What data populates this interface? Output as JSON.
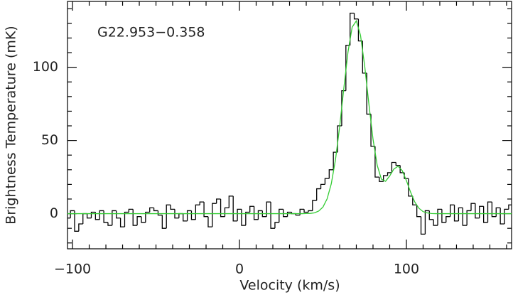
{
  "chart_data": {
    "type": "spectrum",
    "annotation": "G22.953−0.358",
    "xlabel": "Velocity (km/s)",
    "ylabel": "Brightness Temperature (mK)",
    "xlim": [
      -103,
      163
    ],
    "ylim": [
      -24,
      145
    ],
    "xticks": [
      {
        "value": -100,
        "label": "−100"
      },
      0,
      100
    ],
    "yticks": [
      0,
      50,
      100
    ],
    "xminorticks": [
      -90,
      -80,
      -70,
      -60,
      -50,
      -40,
      -30,
      -20,
      -10,
      10,
      20,
      30,
      40,
      50,
      60,
      70,
      80,
      90,
      110,
      120,
      130,
      140,
      150,
      160
    ],
    "yminorticks": [
      -20,
      -10,
      10,
      20,
      30,
      40,
      60,
      70,
      80,
      90,
      110,
      120,
      130,
      140
    ],
    "series": [
      {
        "name": "spectrum",
        "color": "#000000",
        "style": "step",
        "x": [
          -102.5,
          -100,
          -97.5,
          -95,
          -92.5,
          -90,
          -87.5,
          -85,
          -82.5,
          -80,
          -77.5,
          -75,
          -72.5,
          -70,
          -67.5,
          -65,
          -62.5,
          -60,
          -57.5,
          -55,
          -52.5,
          -50,
          -47.5,
          -45,
          -42.5,
          -40,
          -37.5,
          -35,
          -32.5,
          -30,
          -27.5,
          -25,
          -22.5,
          -20,
          -17.5,
          -15,
          -12.5,
          -10,
          -7.5,
          -5,
          -2.5,
          0,
          2.5,
          5,
          7.5,
          10,
          12.5,
          15,
          17.5,
          20,
          22.5,
          25,
          27.5,
          30,
          32.5,
          35,
          37.5,
          40,
          42.5,
          45,
          47.5,
          50,
          52.5,
          55,
          57.5,
          60,
          62.5,
          65,
          67.5,
          70,
          72.5,
          75,
          77.5,
          80,
          82.5,
          85,
          87.5,
          90,
          92.5,
          95,
          97.5,
          100,
          102.5,
          105,
          107.5,
          110,
          112.5,
          115,
          117.5,
          120,
          122.5,
          125,
          127.5,
          130,
          132.5,
          135,
          137.5,
          140,
          142.5,
          145,
          147.5,
          150,
          152.5,
          155,
          157.5,
          160,
          162.5
        ],
        "values": [
          -3,
          2,
          -12,
          -7,
          0,
          -3,
          1,
          -4,
          2,
          -6,
          -8,
          2,
          -3,
          -9,
          1,
          3,
          -8,
          -2,
          -6,
          1,
          4,
          2,
          -1,
          -10,
          6,
          3,
          -3,
          0,
          -5,
          2,
          -4,
          6,
          8,
          -2,
          -9,
          7,
          10,
          -2,
          4,
          12,
          -5,
          3,
          -8,
          1,
          5,
          -4,
          2,
          -2,
          8,
          -10,
          -6,
          3,
          -2,
          1,
          0,
          -1,
          3,
          1,
          2,
          9,
          17,
          20,
          24,
          30,
          42,
          60,
          84,
          115,
          137,
          133,
          118,
          96,
          68,
          46,
          25,
          22,
          26,
          28,
          35,
          33,
          28,
          24,
          12,
          6,
          -2,
          -14,
          2,
          -4,
          -8,
          3,
          -6,
          -2,
          6,
          -5,
          4,
          -8,
          2,
          7,
          -3,
          5,
          -6,
          8,
          -2,
          4,
          -7,
          3,
          6
        ]
      },
      {
        "name": "fit",
        "color": "#33cc33",
        "style": "line",
        "x": [
          -103,
          37.5,
          40,
          42.5,
          45,
          47.5,
          50,
          52.5,
          55,
          57.5,
          60,
          62.5,
          65,
          67.5,
          70,
          72.5,
          75,
          77.5,
          80,
          82.5,
          85,
          87.5,
          90,
          92.5,
          95,
          97.5,
          100,
          102.5,
          105,
          107.5,
          110,
          112.5,
          115,
          117.5,
          163
        ],
        "values": [
          0,
          0,
          0.1,
          0.2,
          0.6,
          1.8,
          4.5,
          10.1,
          20.4,
          36.7,
          59.2,
          85.4,
          110.3,
          127.4,
          131.7,
          121.9,
          101,
          75.2,
          50.9,
          33.1,
          23.6,
          22.1,
          25.8,
          30.5,
          32.4,
          29.4,
          22.6,
          14.7,
          8,
          3.7,
          1.4,
          0.5,
          0.1,
          0,
          0
        ]
      }
    ]
  }
}
